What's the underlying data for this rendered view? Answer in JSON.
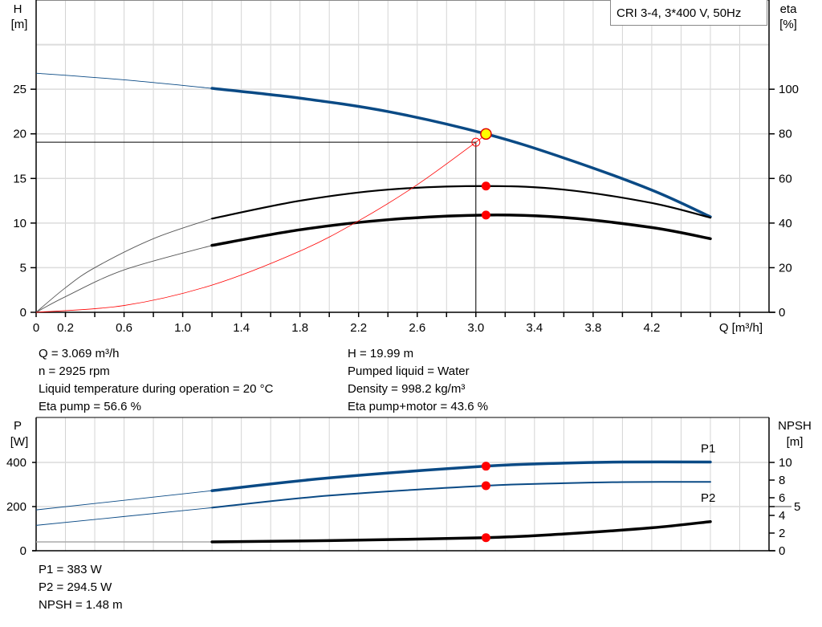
{
  "chart_data": [
    {
      "type": "line",
      "title": "CRI 3-4, 3*400 V, 50Hz",
      "xlabel": "Q [m³/h]",
      "ylabel_left": [
        "H",
        "[m]"
      ],
      "ylabel_right": [
        "eta",
        "[%]"
      ],
      "xlim": [
        0,
        5.0
      ],
      "ylim_left": [
        0,
        35
      ],
      "ylim_right": [
        0,
        140
      ],
      "x_ticks": [
        "0",
        "0.2",
        "0.6",
        "1.0",
        "1.4",
        "1.8",
        "2.2",
        "2.6",
        "3.0",
        "3.4",
        "3.8",
        "4.2"
      ],
      "y_ticks_left": [
        "0",
        "5",
        "10",
        "15",
        "20",
        "25"
      ],
      "y_ticks_right": [
        "0",
        "20",
        "40",
        "60",
        "80",
        "100"
      ],
      "grid": true,
      "series": [
        {
          "key": "H",
          "axis": "left",
          "color": "#0a4a85",
          "points": [
            [
              0,
              26.8
            ],
            [
              0.6,
              26.05
            ],
            [
              1.2,
              25.1
            ],
            [
              1.8,
              24.0
            ],
            [
              2.4,
              22.5
            ],
            [
              3.069,
              19.99
            ],
            [
              3.6,
              17.3
            ],
            [
              4.2,
              13.7
            ],
            [
              4.6,
              10.7
            ]
          ]
        },
        {
          "key": "eta_pump",
          "axis": "right",
          "color": "#000000",
          "points": [
            [
              0,
              0
            ],
            [
              0.2,
              11
            ],
            [
              0.4,
              20
            ],
            [
              0.8,
              33
            ],
            [
              1.2,
              42
            ],
            [
              1.8,
              50
            ],
            [
              2.4,
              55
            ],
            [
              3.069,
              56.6
            ],
            [
              3.6,
              55
            ],
            [
              4.2,
              49
            ],
            [
              4.6,
              42.4
            ]
          ]
        },
        {
          "key": "eta_pump_motor",
          "axis": "right",
          "color": "#000000",
          "points": [
            [
              0,
              0
            ],
            [
              0.2,
              7
            ],
            [
              0.6,
              19
            ],
            [
              1.2,
              30
            ],
            [
              1.8,
              37
            ],
            [
              2.4,
              41.5
            ],
            [
              3.069,
              43.6
            ],
            [
              3.6,
              42.5
            ],
            [
              4.2,
              38
            ],
            [
              4.6,
              33
            ]
          ]
        },
        {
          "key": "system_curve",
          "axis": "left",
          "color": "#ff0000",
          "points": [
            [
              0,
              0
            ],
            [
              0.6,
              0.76
            ],
            [
              1.2,
              3.05
            ],
            [
              1.8,
              6.86
            ],
            [
              2.2,
              10.25
            ],
            [
              2.6,
              14.3
            ],
            [
              3.0,
              19.06
            ],
            [
              3.069,
              19.99
            ]
          ]
        }
      ],
      "operating_point": {
        "q": 3.069,
        "h": 19.99,
        "eta_pump": 56.6,
        "eta_pump_motor": 43.6
      },
      "duty_point": {
        "q": 3.0,
        "h": 19.06
      },
      "thin_below_q": 1.2
    },
    {
      "type": "line",
      "ylabel_left": [
        "P",
        "[W]"
      ],
      "ylabel_right": [
        "NPSH",
        "[m]"
      ],
      "xlim": [
        0,
        5.0
      ],
      "ylim_left": [
        0,
        600
      ],
      "ylim_right": [
        0,
        15
      ],
      "y_ticks_left": [
        "0",
        "200",
        "400"
      ],
      "y_ticks_right": [
        "0",
        "2",
        "4",
        "5",
        "6",
        "8",
        "10"
      ],
      "grid": true,
      "series": [
        {
          "key": "P1",
          "name": "P1",
          "axis": "left",
          "color": "#0a4a85",
          "points": [
            [
              0,
              185
            ],
            [
              1.2,
              272
            ],
            [
              2.0,
              330
            ],
            [
              3.069,
              383
            ],
            [
              3.6,
              397
            ],
            [
              4.0,
              402
            ],
            [
              4.6,
              402
            ]
          ]
        },
        {
          "key": "P2",
          "name": "P2",
          "axis": "left",
          "color": "#0a4a85",
          "points": [
            [
              0,
              115
            ],
            [
              1.2,
              195
            ],
            [
              2.0,
              250
            ],
            [
              3.069,
              294.5
            ],
            [
              3.6,
              306
            ],
            [
              4.0,
              311
            ],
            [
              4.6,
              312
            ]
          ]
        },
        {
          "key": "NPSH",
          "axis": "right",
          "color": "#000000",
          "points": [
            [
              0,
              1.0
            ],
            [
              1.2,
              1.0
            ],
            [
              2.0,
              1.15
            ],
            [
              3.069,
              1.48
            ],
            [
              3.6,
              1.9
            ],
            [
              4.2,
              2.6
            ],
            [
              4.6,
              3.3
            ]
          ]
        }
      ],
      "operating_point": {
        "q": 3.069,
        "p1": 383,
        "p2": 294.5,
        "npsh": 1.48
      },
      "thin_below_q": 1.2
    }
  ],
  "info": {
    "left": [
      "Q = 3.069 m³/h",
      "n = 2925 rpm",
      "Liquid temperature during operation = 20 °C",
      "Eta pump = 56.6 %"
    ],
    "right": [
      "H = 19.99 m",
      "Pumped liquid = Water",
      "Density = 998.2 kg/m³",
      "Eta pump+motor = 43.6 %"
    ],
    "bottom": [
      "P1 = 383 W",
      "P2 = 294.5 W",
      "NPSH = 1.48 m"
    ]
  }
}
